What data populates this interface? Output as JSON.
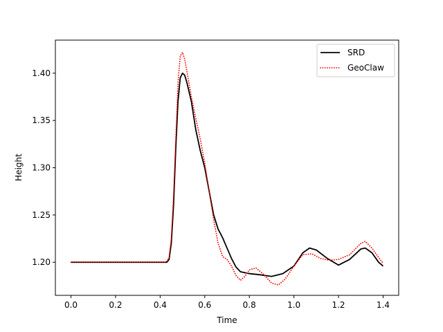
{
  "chart_data": {
    "type": "line",
    "title": "",
    "xlabel": "Time",
    "ylabel": "Height",
    "xlim": [
      -0.07,
      1.47
    ],
    "ylim": [
      1.165,
      1.435
    ],
    "xticks": [
      0.0,
      0.2,
      0.4,
      0.6,
      0.8,
      1.0,
      1.2,
      1.4
    ],
    "xtick_labels": [
      "0.0",
      "0.2",
      "0.4",
      "0.6",
      "0.8",
      "1.0",
      "1.2",
      "1.4"
    ],
    "yticks": [
      1.2,
      1.25,
      1.3,
      1.35,
      1.4
    ],
    "ytick_labels": [
      "1.20",
      "1.25",
      "1.30",
      "1.35",
      "1.40"
    ],
    "grid": false,
    "legend_position": "upper right",
    "series": [
      {
        "name": "SRD",
        "color": "#000000",
        "style": "solid",
        "x": [
          0.0,
          0.1,
          0.2,
          0.3,
          0.4,
          0.43,
          0.44,
          0.45,
          0.46,
          0.47,
          0.48,
          0.49,
          0.5,
          0.51,
          0.52,
          0.54,
          0.56,
          0.58,
          0.6,
          0.62,
          0.64,
          0.66,
          0.68,
          0.7,
          0.72,
          0.74,
          0.76,
          0.8,
          0.84,
          0.9,
          0.95,
          1.0,
          1.04,
          1.07,
          1.1,
          1.15,
          1.2,
          1.25,
          1.3,
          1.32,
          1.35,
          1.38,
          1.4
        ],
        "y": [
          1.2,
          1.2,
          1.2,
          1.2,
          1.2,
          1.2,
          1.203,
          1.22,
          1.26,
          1.32,
          1.37,
          1.395,
          1.4,
          1.398,
          1.39,
          1.37,
          1.34,
          1.318,
          1.3,
          1.275,
          1.25,
          1.235,
          1.226,
          1.215,
          1.204,
          1.195,
          1.19,
          1.188,
          1.187,
          1.185,
          1.188,
          1.196,
          1.21,
          1.215,
          1.213,
          1.204,
          1.197,
          1.203,
          1.214,
          1.215,
          1.21,
          1.2,
          1.196
        ]
      },
      {
        "name": "GeoClaw",
        "color": "#ff0000",
        "style": "dotted",
        "x": [
          0.0,
          0.1,
          0.2,
          0.3,
          0.4,
          0.42,
          0.43,
          0.44,
          0.45,
          0.46,
          0.47,
          0.48,
          0.49,
          0.5,
          0.51,
          0.52,
          0.54,
          0.56,
          0.58,
          0.6,
          0.62,
          0.64,
          0.66,
          0.68,
          0.7,
          0.72,
          0.74,
          0.76,
          0.78,
          0.8,
          0.83,
          0.86,
          0.9,
          0.93,
          0.96,
          1.0,
          1.04,
          1.08,
          1.12,
          1.16,
          1.2,
          1.25,
          1.3,
          1.32,
          1.35,
          1.38,
          1.4
        ],
        "y": [
          1.2,
          1.2,
          1.2,
          1.2,
          1.2,
          1.2,
          1.201,
          1.205,
          1.225,
          1.27,
          1.33,
          1.39,
          1.418,
          1.422,
          1.415,
          1.402,
          1.375,
          1.352,
          1.33,
          1.305,
          1.275,
          1.245,
          1.22,
          1.206,
          1.203,
          1.196,
          1.186,
          1.181,
          1.185,
          1.192,
          1.194,
          1.188,
          1.178,
          1.176,
          1.182,
          1.196,
          1.208,
          1.209,
          1.204,
          1.202,
          1.203,
          1.208,
          1.22,
          1.222,
          1.215,
          1.205,
          1.199
        ]
      }
    ]
  }
}
